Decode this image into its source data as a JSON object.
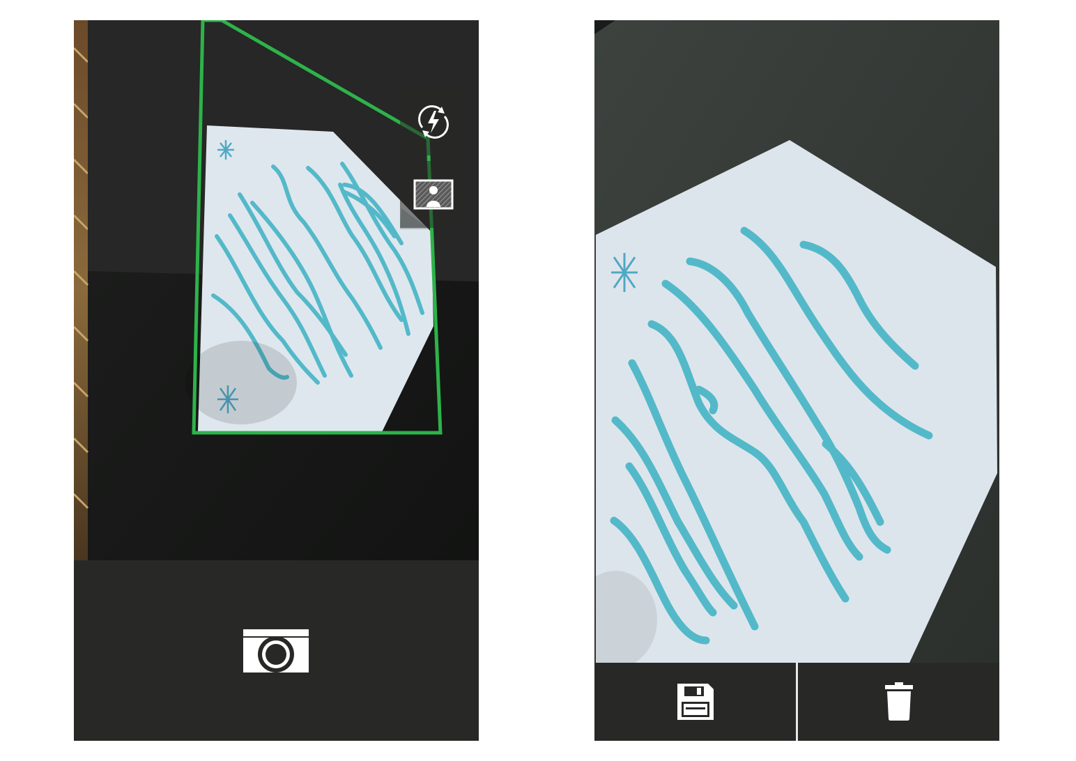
{
  "camera_screen": {
    "controls": {
      "flash_icon": "flash-auto-icon",
      "mode_icon": "document-mode-icon",
      "capture_icon": "camera-icon"
    },
    "colors": {
      "detection_outline": "#2db34a",
      "bar_background": "#282927",
      "marker_ink": "#53b9c9"
    }
  },
  "preview_screen": {
    "controls": {
      "save_icon": "floppy-disk-icon",
      "delete_icon": "trash-icon"
    },
    "colors": {
      "bar_background": "#282927",
      "divider": "#e8e8e8"
    }
  }
}
